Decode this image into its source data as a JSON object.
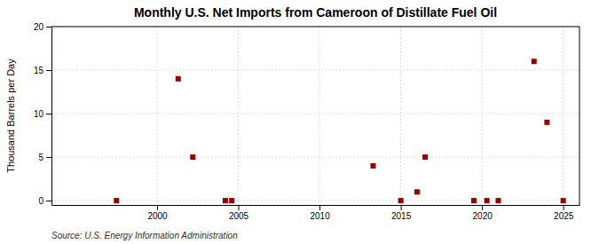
{
  "chart_data": {
    "type": "scatter",
    "title": "Monthly U.S. Net Imports from Cameroon of Distillate Fuel Oil",
    "ylabel": "Thousand Barrels per Day",
    "annotations": [
      "Source: U.S. Energy Information Administration"
    ],
    "x": [
      1997.5,
      2001.3,
      2002.2,
      2004.2,
      2004.6,
      2013.3,
      2015.0,
      2016.0,
      2016.5,
      2019.5,
      2020.3,
      2021.0,
      2023.2,
      2024.0,
      2025.0
    ],
    "values": [
      0,
      14,
      5,
      0,
      0,
      4,
      0,
      1,
      5,
      0,
      0,
      0,
      16,
      9,
      0
    ],
    "color": "#9B0000",
    "marker": "square",
    "xlim": [
      1993.5,
      2026
    ],
    "ylim": [
      -0.5,
      20
    ],
    "xticks": [
      2000,
      2005,
      2010,
      2015,
      2020,
      2025
    ],
    "yticks": [
      0,
      5,
      10,
      15,
      20
    ],
    "grid": true
  }
}
